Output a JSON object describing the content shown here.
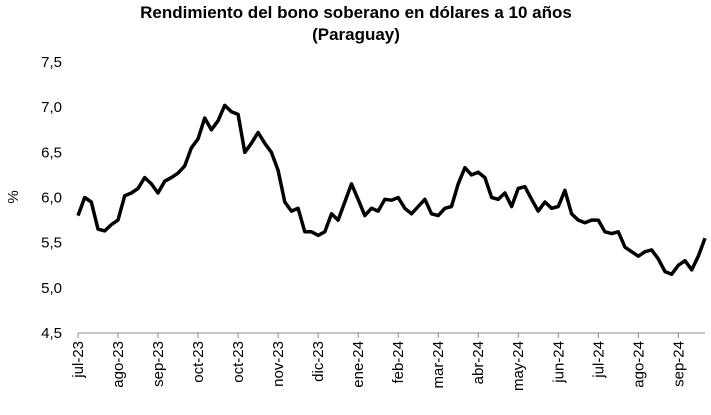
{
  "chart_data": {
    "type": "line",
    "title": [
      "Rendimiento del bono soberano en dólares a 10 años",
      "(Paraguay)"
    ],
    "ylabel": "%",
    "categories": [
      "jul-23",
      null,
      null,
      null,
      null,
      null,
      "ago-23",
      null,
      null,
      null,
      null,
      null,
      "sep-23",
      null,
      null,
      null,
      null,
      null,
      "oct-23",
      null,
      null,
      null,
      null,
      null,
      "oct-23",
      null,
      null,
      null,
      null,
      null,
      "nov-23",
      null,
      null,
      null,
      null,
      null,
      "dic-23",
      null,
      null,
      null,
      null,
      null,
      "ene-24",
      null,
      null,
      null,
      null,
      null,
      "feb-24",
      null,
      null,
      null,
      null,
      null,
      "mar-24",
      null,
      null,
      null,
      null,
      null,
      "abr-24",
      null,
      null,
      null,
      null,
      null,
      "may-24",
      null,
      null,
      null,
      null,
      null,
      "jun-24",
      null,
      null,
      null,
      null,
      null,
      "jul-24",
      null,
      null,
      null,
      null,
      null,
      "ago-24",
      null,
      null,
      null,
      null,
      null,
      "sep-24",
      null,
      null,
      null,
      null
    ],
    "series": [
      {
        "name": "Rendimiento",
        "color": "#000000",
        "values": [
          5.8,
          6.0,
          5.95,
          5.65,
          5.63,
          5.7,
          5.75,
          6.02,
          6.05,
          6.1,
          6.22,
          6.15,
          6.05,
          6.18,
          6.22,
          6.27,
          6.35,
          6.55,
          6.65,
          6.88,
          6.75,
          6.85,
          7.02,
          6.95,
          6.92,
          6.5,
          6.6,
          6.72,
          6.6,
          6.5,
          6.3,
          5.95,
          5.85,
          5.88,
          5.62,
          5.62,
          5.58,
          5.62,
          5.82,
          5.75,
          5.95,
          6.15,
          5.98,
          5.8,
          5.88,
          5.85,
          5.98,
          5.97,
          6.0,
          5.88,
          5.82,
          5.9,
          5.98,
          5.82,
          5.8,
          5.88,
          5.9,
          6.15,
          6.33,
          6.25,
          6.28,
          6.22,
          6.0,
          5.98,
          6.05,
          5.9,
          6.1,
          6.12,
          5.98,
          5.85,
          5.95,
          5.88,
          5.9,
          6.08,
          5.82,
          5.75,
          5.72,
          5.75,
          5.75,
          5.62,
          5.6,
          5.62,
          5.45,
          5.4,
          5.35,
          5.4,
          5.42,
          5.32,
          5.18,
          5.15,
          5.25,
          5.3,
          5.2,
          5.35,
          5.55
        ]
      }
    ],
    "ylim": [
      4.5,
      7.5
    ],
    "yticks": [
      {
        "value": 4.5,
        "label": "4,5"
      },
      {
        "value": 5,
        "label": "5,0"
      },
      {
        "value": 5.5,
        "label": "5,5"
      },
      {
        "value": 6,
        "label": "6,0"
      },
      {
        "value": 6.5,
        "label": "6,5"
      },
      {
        "value": 7,
        "label": "7,0"
      },
      {
        "value": 7.5,
        "label": "7,5"
      }
    ],
    "grid": false
  }
}
